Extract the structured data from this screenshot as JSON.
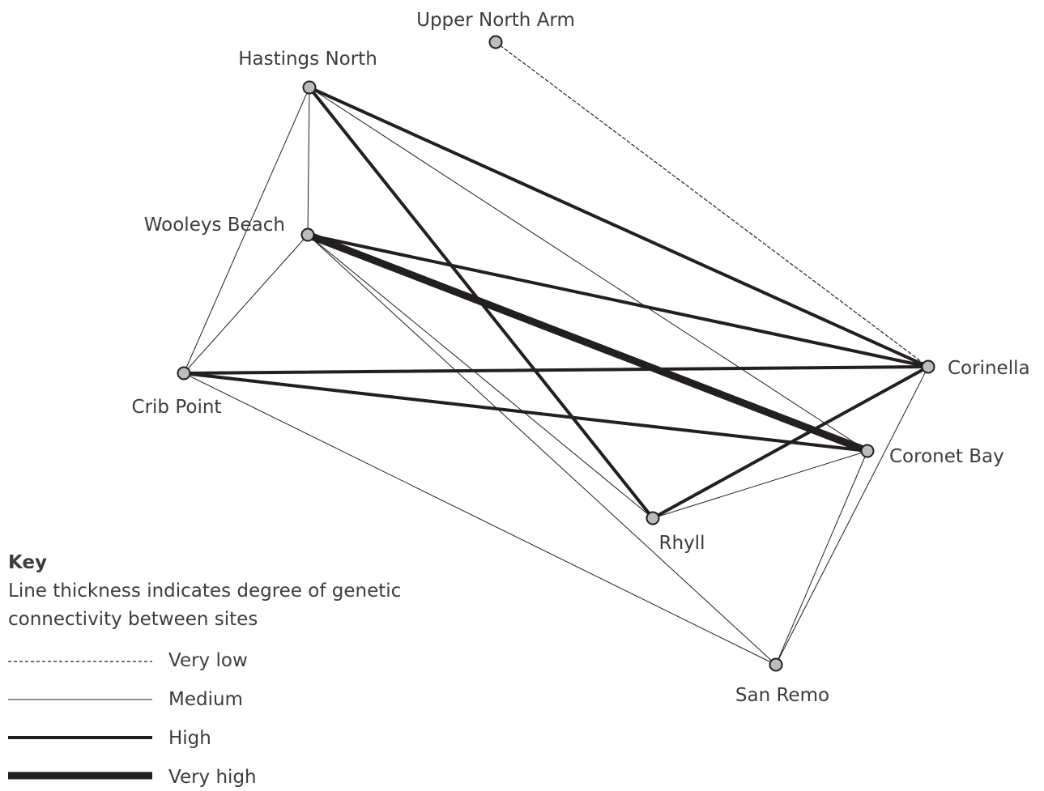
{
  "sites": [
    {
      "id": "upper-north-arm",
      "label": "Upper North Arm"
    },
    {
      "id": "hastings-north",
      "label": "Hastings North"
    },
    {
      "id": "wooleys-beach",
      "label": "Wooleys Beach"
    },
    {
      "id": "crib-point",
      "label": "Crib Point"
    },
    {
      "id": "corinella",
      "label": "Corinella"
    },
    {
      "id": "coronet-bay",
      "label": "Coronet Bay"
    },
    {
      "id": "rhyll",
      "label": "Rhyll"
    },
    {
      "id": "san-remo",
      "label": "San Remo"
    }
  ],
  "connections": [
    {
      "from": "upper-north-arm",
      "to": "corinella",
      "level": "very-low"
    },
    {
      "from": "hastings-north",
      "to": "corinella",
      "level": "high"
    },
    {
      "from": "hastings-north",
      "to": "rhyll",
      "level": "high"
    },
    {
      "from": "hastings-north",
      "to": "coronet-bay",
      "level": "medium"
    },
    {
      "from": "hastings-north",
      "to": "wooleys-beach",
      "level": "medium"
    },
    {
      "from": "hastings-north",
      "to": "crib-point",
      "level": "medium"
    },
    {
      "from": "wooleys-beach",
      "to": "coronet-bay",
      "level": "very-high"
    },
    {
      "from": "wooleys-beach",
      "to": "corinella",
      "level": "high"
    },
    {
      "from": "wooleys-beach",
      "to": "crib-point",
      "level": "medium"
    },
    {
      "from": "wooleys-beach",
      "to": "rhyll",
      "level": "medium"
    },
    {
      "from": "wooleys-beach",
      "to": "san-remo",
      "level": "medium"
    },
    {
      "from": "crib-point",
      "to": "corinella",
      "level": "high"
    },
    {
      "from": "crib-point",
      "to": "coronet-bay",
      "level": "high"
    },
    {
      "from": "crib-point",
      "to": "san-remo",
      "level": "medium"
    },
    {
      "from": "rhyll",
      "to": "corinella",
      "level": "high"
    },
    {
      "from": "rhyll",
      "to": "coronet-bay",
      "level": "medium"
    },
    {
      "from": "corinella",
      "to": "san-remo",
      "level": "medium"
    },
    {
      "from": "coronet-bay",
      "to": "san-remo",
      "level": "medium"
    }
  ],
  "key": {
    "title": "Key",
    "description_line1": "Line thickness indicates degree of genetic",
    "description_line2": "connectivity between sites",
    "items": [
      {
        "level": "very-low",
        "label": "Very low"
      },
      {
        "level": "medium",
        "label": "Medium"
      },
      {
        "level": "high",
        "label": "High"
      },
      {
        "level": "very-high",
        "label": "Very high"
      }
    ]
  },
  "colors": {
    "line": "#231f20",
    "node_fill": "#bcbcbc",
    "node_stroke": "#231f20",
    "text": "#3d3d3d"
  }
}
